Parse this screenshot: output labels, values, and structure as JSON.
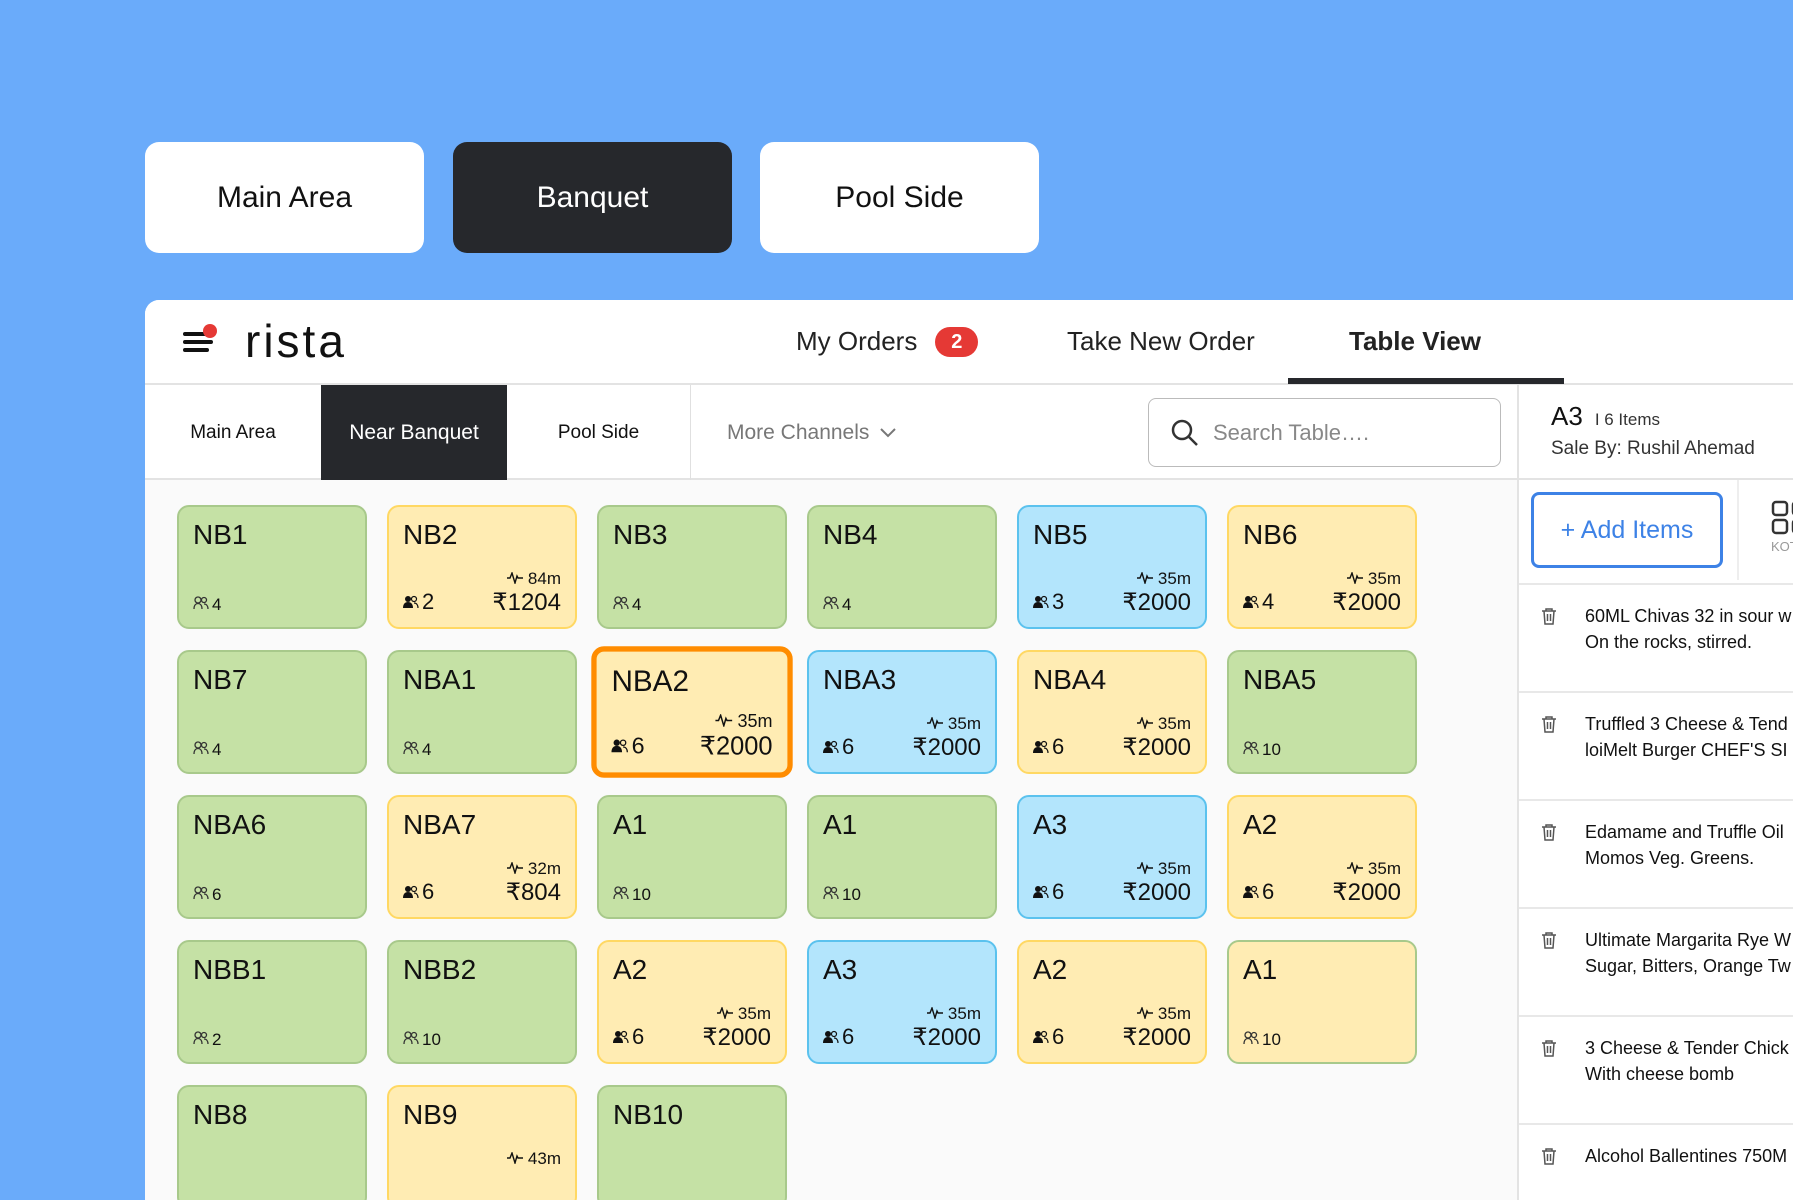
{
  "area_tabs": [
    {
      "label": "Main Area",
      "active": false
    },
    {
      "label": "Banquet",
      "active": true
    },
    {
      "label": "Pool Side",
      "active": false
    }
  ],
  "header": {
    "logo": "rista",
    "nav": {
      "my_orders": "My Orders",
      "my_orders_count": "2",
      "take_new_order": "Take New Order",
      "table_view": "Table View"
    }
  },
  "channels": {
    "main_area": "Main Area",
    "near_banquet": "Near Banquet",
    "pool_side": "Pool Side",
    "more": "More Channels"
  },
  "search": {
    "placeholder": "Search Table…."
  },
  "colors": {
    "green": "#c5e1a5",
    "yellow": "#ffecb3",
    "blue": "#b3e5fc",
    "selected": "#ff8c00",
    "accent": "#3d82e6",
    "badge": "#e53935"
  },
  "tables": [
    {
      "name": "NB1",
      "status": "green",
      "guests": "4"
    },
    {
      "name": "NB2",
      "status": "yellow",
      "guests": "2",
      "time": "84m",
      "amount": "₹1204"
    },
    {
      "name": "NB3",
      "status": "green",
      "guests": "4"
    },
    {
      "name": "NB4",
      "status": "green",
      "guests": "4"
    },
    {
      "name": "NB5",
      "status": "blue",
      "guests": "3",
      "time": "35m",
      "amount": "₹2000"
    },
    {
      "name": "NB6",
      "status": "yellow",
      "guests": "4",
      "time": "35m",
      "amount": "₹2000"
    },
    {
      "name": "NB7",
      "status": "green",
      "guests": "4"
    },
    {
      "name": "NBA1",
      "status": "green",
      "guests": "4"
    },
    {
      "name": "NBA2",
      "status": "yellow",
      "guests": "6",
      "time": "35m",
      "amount": "₹2000",
      "selected": true
    },
    {
      "name": "NBA3",
      "status": "blue",
      "guests": "6",
      "time": "35m",
      "amount": "₹2000"
    },
    {
      "name": "NBA4",
      "status": "yellow",
      "guests": "6",
      "time": "35m",
      "amount": "₹2000"
    },
    {
      "name": "NBA5",
      "status": "green",
      "guests": "10"
    },
    {
      "name": "NBA6",
      "status": "green",
      "guests": "6"
    },
    {
      "name": "NBA7",
      "status": "yellow",
      "guests": "6",
      "time": "32m",
      "amount": "₹804"
    },
    {
      "name": "A1",
      "status": "green",
      "guests": "10"
    },
    {
      "name": "A1",
      "status": "green",
      "guests": "10"
    },
    {
      "name": "A3",
      "status": "blue",
      "guests": "6",
      "time": "35m",
      "amount": "₹2000"
    },
    {
      "name": "A2",
      "status": "yellow",
      "guests": "6",
      "time": "35m",
      "amount": "₹2000"
    },
    {
      "name": "NBB1",
      "status": "green",
      "guests": "2"
    },
    {
      "name": "NBB2",
      "status": "green",
      "guests": "10"
    },
    {
      "name": "A2",
      "status": "yellow",
      "guests": "6",
      "time": "35m",
      "amount": "₹2000"
    },
    {
      "name": "A3",
      "status": "blue",
      "guests": "6",
      "time": "35m",
      "amount": "₹2000"
    },
    {
      "name": "A2",
      "status": "yellow",
      "guests": "6",
      "time": "35m",
      "amount": "₹2000"
    },
    {
      "name": "A1",
      "status": "yg",
      "guests": "10"
    },
    {
      "name": "NB8",
      "status": "green"
    },
    {
      "name": "NB9",
      "status": "yellow",
      "time": "43m"
    },
    {
      "name": "NB10",
      "status": "green"
    }
  ],
  "order": {
    "table": "A3",
    "items_count": "I 6 Items",
    "sale_by": "Sale By: Rushil Ahemad",
    "add_items": "+ Add Items",
    "kot": "KOT",
    "items": [
      {
        "line1": "60ML Chivas 32 in sour w",
        "line2": "On the rocks, stirred."
      },
      {
        "line1": "Truffled 3 Cheese & Tend",
        "line2": "loiMelt Burger CHEF'S SI"
      },
      {
        "line1": "Edamame and Truffle Oil",
        "line2": "Momos Veg. Greens."
      },
      {
        "line1": "Ultimate Margarita Rye W",
        "line2": "Sugar, Bitters, Orange Tw"
      },
      {
        "line1": "3 Cheese & Tender Chick",
        "line2": "With cheese bomb"
      },
      {
        "line1": "Alcohol Ballentines 750M",
        "line2": ""
      }
    ]
  }
}
